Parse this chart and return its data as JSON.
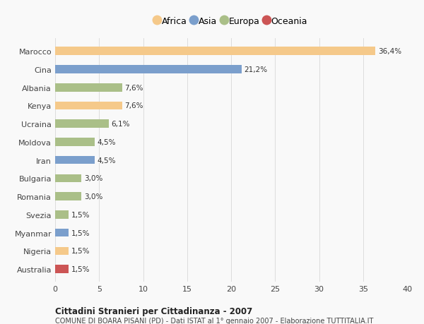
{
  "categories": [
    "Marocco",
    "Cina",
    "Albania",
    "Kenya",
    "Ucraina",
    "Moldova",
    "Iran",
    "Bulgaria",
    "Romania",
    "Svezia",
    "Myanmar",
    "Nigeria",
    "Australia"
  ],
  "values": [
    36.4,
    21.2,
    7.6,
    7.6,
    6.1,
    4.5,
    4.5,
    3.0,
    3.0,
    1.5,
    1.5,
    1.5,
    1.5
  ],
  "labels": [
    "36,4%",
    "21,2%",
    "7,6%",
    "7,6%",
    "6,1%",
    "4,5%",
    "4,5%",
    "3,0%",
    "3,0%",
    "1,5%",
    "1,5%",
    "1,5%",
    "1,5%"
  ],
  "continents": [
    "Africa",
    "Asia",
    "Europa",
    "Africa",
    "Europa",
    "Europa",
    "Asia",
    "Europa",
    "Europa",
    "Europa",
    "Asia",
    "Africa",
    "Oceania"
  ],
  "continent_colors": {
    "Africa": "#F5C98A",
    "Asia": "#7B9FCC",
    "Europa": "#AABF88",
    "Oceania": "#CC5555"
  },
  "legend_order": [
    "Africa",
    "Asia",
    "Europa",
    "Oceania"
  ],
  "xlim": [
    0,
    40
  ],
  "xticks": [
    0,
    5,
    10,
    15,
    20,
    25,
    30,
    35,
    40
  ],
  "title": "Cittadini Stranieri per Cittadinanza - 2007",
  "subtitle": "COMUNE DI BOARA PISANI (PD) - Dati ISTAT al 1° gennaio 2007 - Elaborazione TUTTITALIA.IT",
  "background_color": "#f9f9f9",
  "bar_height": 0.45,
  "grid_color": "#dddddd"
}
